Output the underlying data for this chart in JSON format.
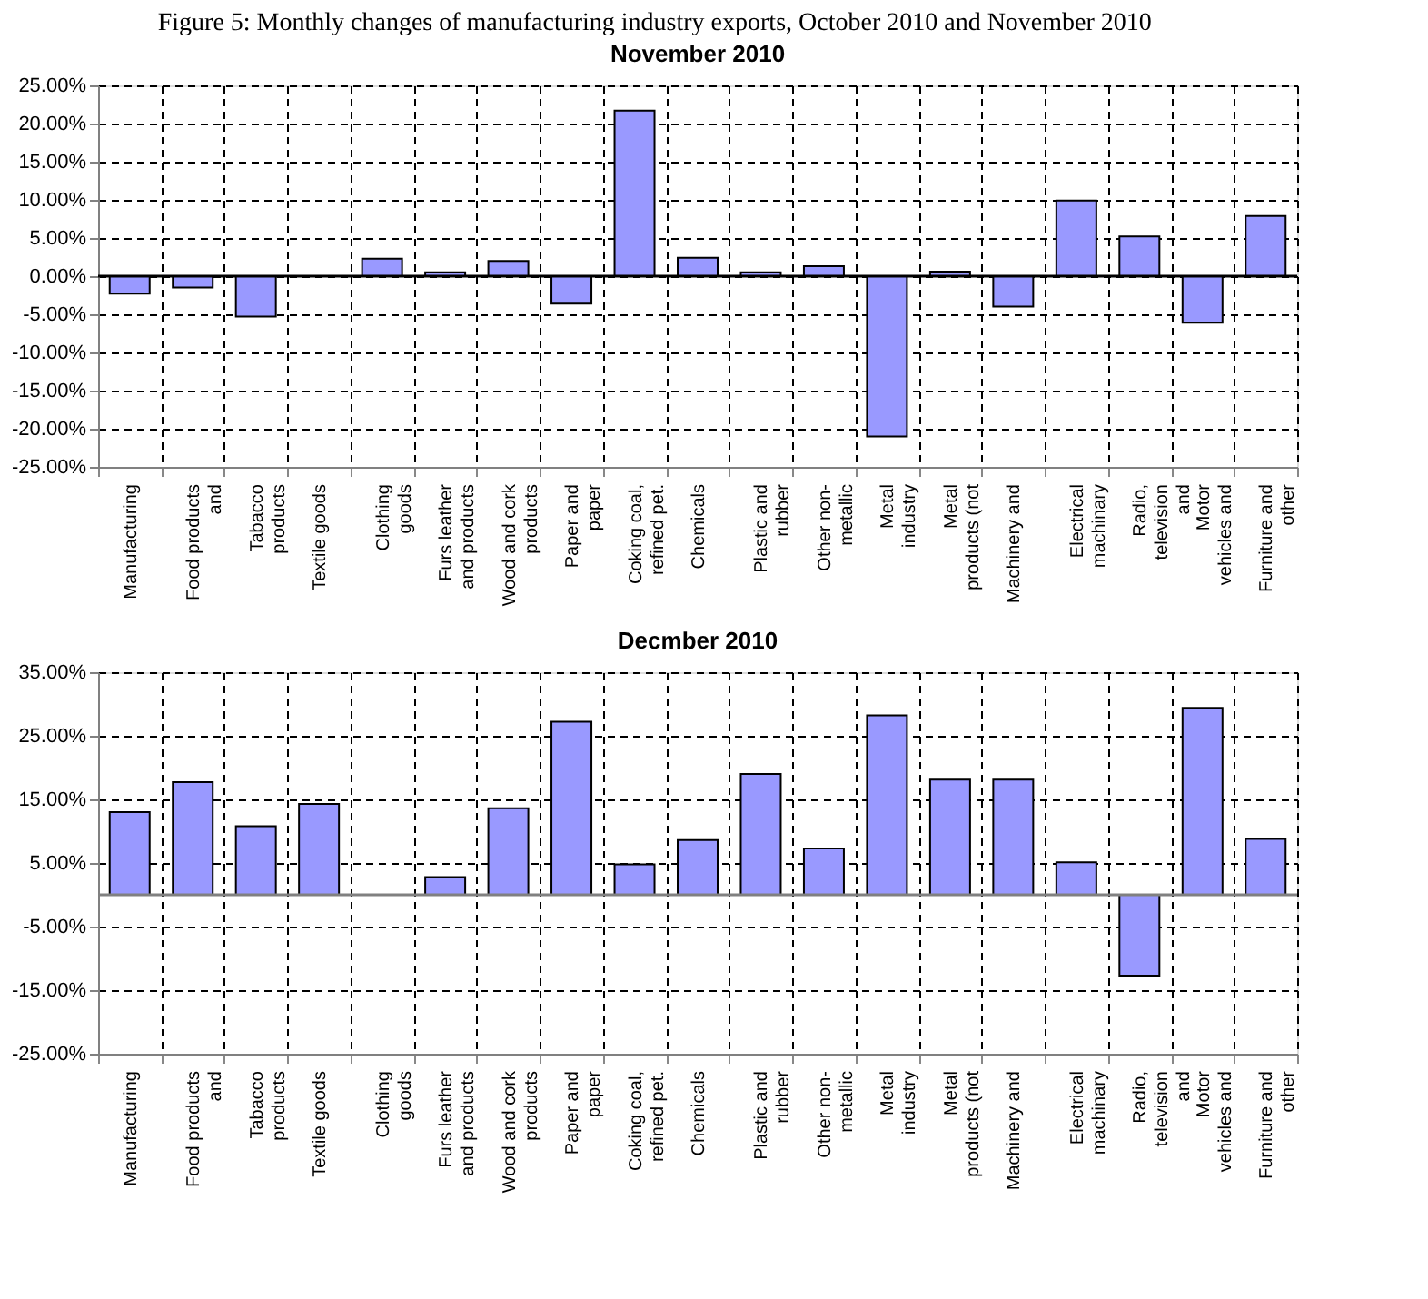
{
  "chart_data": [
    {
      "type": "bar",
      "title": "November 2010",
      "annotations": [
        "Figure 5: Monthly changes of manufacturing industry exports, October 2010 and November 2010"
      ],
      "categories": [
        "Manufacturing",
        "Food products and",
        "Tabacco products",
        "Textile goods",
        "Clothing goods",
        "Furs leather and products",
        "Wood and cork products",
        "Paper and paper",
        "Coking coal, refined pet.",
        "Chemicals",
        "Plastic and rubber",
        "Other non-metallic",
        "Metal industry",
        "Metal products (not",
        "Machinery and",
        "Electrical machinary",
        "Radio, television and",
        "Motor vehicles and",
        "Furniture and other"
      ],
      "values": [
        -2.3,
        -1.5,
        -5.3,
        null,
        2.3,
        0.5,
        2.0,
        -3.6,
        21.7,
        2.4,
        0.5,
        1.3,
        -21.0,
        0.6,
        -4.0,
        9.9,
        5.2,
        -6.1,
        7.9
      ],
      "color": "#9999ff",
      "ylim": [
        -25,
        25
      ],
      "yticks": [
        {
          "value": -25,
          "label": "-25.00%"
        },
        {
          "value": -20,
          "label": "-20.00%"
        },
        {
          "value": -15,
          "label": "-15.00%"
        },
        {
          "value": -10,
          "label": "-10.00%"
        },
        {
          "value": -5,
          "label": "-5.00%"
        },
        {
          "value": 0,
          "label": "0.00%"
        },
        {
          "value": 5,
          "label": "5.00%"
        },
        {
          "value": 10,
          "label": "10.00%"
        },
        {
          "value": 15,
          "label": "15.00%"
        },
        {
          "value": 20,
          "label": "20.00%"
        },
        {
          "value": 25,
          "label": "25.00%"
        }
      ],
      "ref_lines": [
        {
          "axis": "y",
          "value": 0,
          "color": "#000000"
        }
      ],
      "grid": true,
      "line_style": "dashed"
    },
    {
      "type": "bar",
      "title": "Decmber 2010",
      "categories": [
        "Manufacturing",
        "Food products and",
        "Tabacco products",
        "Textile goods",
        "Clothing goods",
        "Furs leather and products",
        "Wood and cork products",
        "Paper and paper",
        "Coking coal, refined pet.",
        "Chemicals",
        "Plastic and rubber",
        "Other non-metallic",
        "Metal industry",
        "Metal products (not",
        "Machinery and",
        "Electrical machinary",
        "Radio, television and",
        "Motor vehicles and",
        "Furniture and other"
      ],
      "values": [
        13.0,
        17.7,
        10.8,
        14.3,
        null,
        2.8,
        13.6,
        27.2,
        4.8,
        8.6,
        19.0,
        7.3,
        28.2,
        18.1,
        18.1,
        5.1,
        -12.7,
        29.4,
        8.8
      ],
      "color": "#9999ff",
      "ylim": [
        -25,
        35
      ],
      "yticks": [
        {
          "value": -25,
          "label": "-25.00%"
        },
        {
          "value": -15,
          "label": "-15.00%"
        },
        {
          "value": -5,
          "label": "-5.00%"
        },
        {
          "value": 5,
          "label": "5.00%"
        },
        {
          "value": 15,
          "label": "15.00%"
        },
        {
          "value": 25,
          "label": "25.00%"
        },
        {
          "value": 35,
          "label": "35.00%"
        }
      ],
      "ref_lines": [
        {
          "axis": "y",
          "value": 0,
          "color": "#808080"
        }
      ],
      "grid": true,
      "line_style": "dashed"
    }
  ]
}
